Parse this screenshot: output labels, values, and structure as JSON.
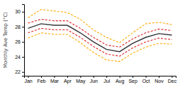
{
  "chart_data": {
    "type": "line",
    "ylabel": "Monthly Ave Temp (°C)",
    "categories": [
      "Jan",
      "Feb",
      "Mar",
      "Apr",
      "May",
      "Jun",
      "Jul",
      "Aug",
      "Sep",
      "Oct",
      "Nov",
      "Dec"
    ],
    "series": [
      {
        "color": "#ffaa00",
        "line_style": "dashed",
        "values": [
          29.2,
          30.3,
          30.1,
          29.9,
          29.0,
          27.6,
          26.6,
          25.9,
          27.2,
          28.4,
          28.6,
          28.3
        ]
      },
      {
        "color": "#ffaa00",
        "line_style": "dashed",
        "values": [
          26.5,
          27.2,
          27.0,
          27.0,
          25.9,
          24.6,
          23.6,
          23.4,
          24.5,
          25.3,
          25.8,
          25.7
        ]
      },
      {
        "color": "#dd2222",
        "line_style": "dashed",
        "values": [
          28.5,
          29.0,
          28.8,
          28.8,
          27.8,
          26.6,
          25.6,
          25.3,
          26.4,
          27.2,
          27.7,
          27.5
        ]
      },
      {
        "color": "#dd2222",
        "line_style": "dashed",
        "values": [
          27.2,
          27.8,
          27.6,
          27.6,
          26.6,
          25.4,
          24.4,
          24.1,
          25.2,
          26.0,
          26.5,
          26.3
        ]
      },
      {
        "color": "#333333",
        "line_style": "solid",
        "values": [
          27.8,
          28.4,
          28.2,
          28.2,
          27.2,
          26.0,
          25.0,
          24.7,
          25.8,
          26.6,
          27.1,
          26.9
        ]
      }
    ],
    "ylim": [
      21.5,
      31.0
    ],
    "yticks": [
      22,
      24,
      26,
      28,
      30
    ],
    "grid": false
  }
}
